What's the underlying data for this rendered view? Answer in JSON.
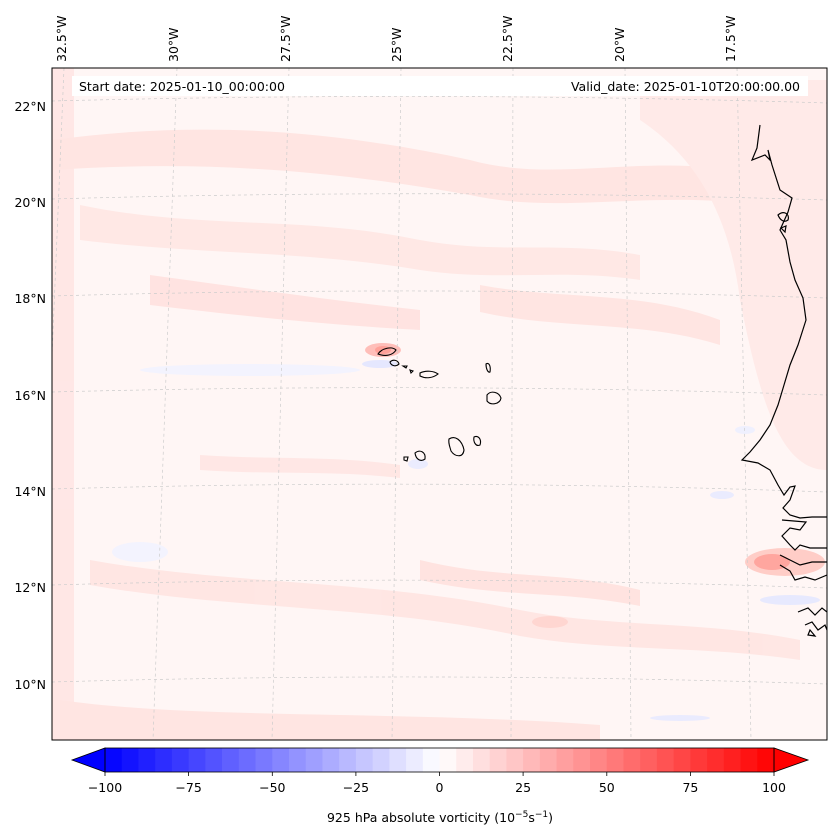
{
  "header": {
    "start_date": "Start date: 2025-01-10_00:00:00",
    "valid_date": "Valid_date: 2025-01-10T20:00:00.00"
  },
  "axes": {
    "lon_labels": [
      "32.5°W",
      "30°W",
      "27.5°W",
      "25°W",
      "22.5°W",
      "20°W",
      "17.5°W"
    ],
    "lat_labels": [
      "22°N",
      "20°N",
      "18°N",
      "16°N",
      "14°N",
      "12°N",
      "10°N"
    ]
  },
  "colorbar": {
    "label_prefix": "925 hPa absolute vorticity (10",
    "label_exp1": "−5",
    "label_mid": "s",
    "label_exp2": "−1",
    "label_suffix": ")",
    "ticks": [
      "−100",
      "−75",
      "−50",
      "−25",
      "0",
      "25",
      "50",
      "75",
      "100"
    ],
    "min_color": "#0000ff",
    "mid_color": "#ffffff",
    "max_color": "#ff0000"
  },
  "map": {
    "background_color": "#fff6f5",
    "coast_color": "#000000",
    "grid_color": "#c8c8c8"
  }
}
